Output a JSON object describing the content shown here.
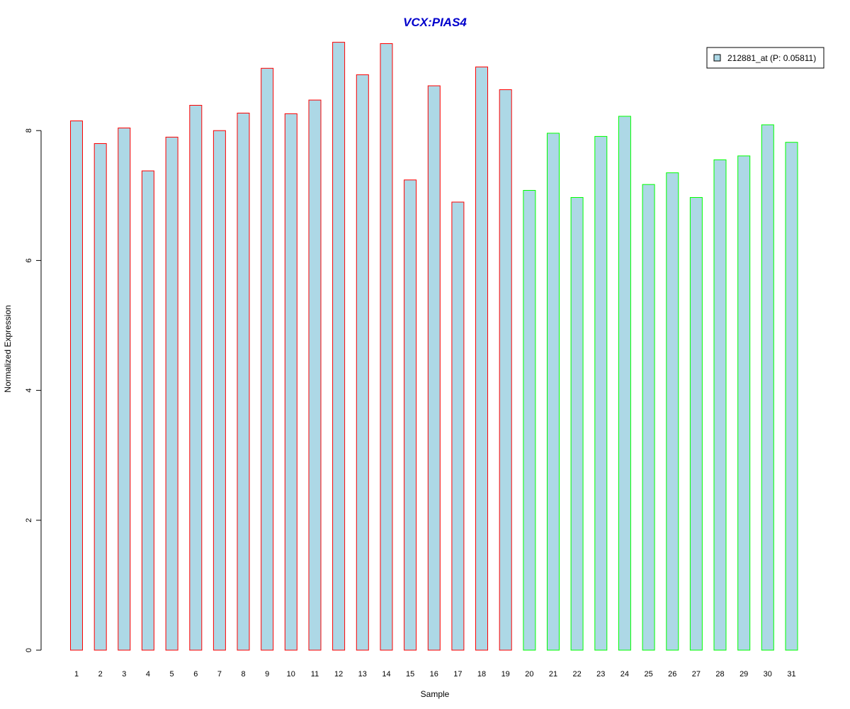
{
  "chart_data": {
    "type": "bar",
    "title": "VCX:PIAS4",
    "xlabel": "Sample",
    "ylabel": "Normalized Expression",
    "categories": [
      "1",
      "2",
      "3",
      "4",
      "5",
      "6",
      "7",
      "8",
      "9",
      "10",
      "11",
      "12",
      "13",
      "14",
      "15",
      "16",
      "17",
      "18",
      "19",
      "20",
      "21",
      "22",
      "23",
      "24",
      "25",
      "26",
      "27",
      "28",
      "29",
      "30",
      "31"
    ],
    "series": [
      {
        "name": "212881_at (P: 0.05811)",
        "values": [
          8.15,
          7.8,
          8.04,
          7.38,
          7.9,
          8.39,
          8.0,
          8.27,
          8.96,
          8.26,
          8.47,
          9.36,
          8.86,
          9.34,
          7.24,
          8.69,
          6.9,
          8.98,
          8.63,
          7.08,
          7.96,
          6.97,
          7.91,
          8.22,
          7.17,
          7.35,
          6.97,
          7.55,
          7.61,
          8.09,
          7.82
        ]
      }
    ],
    "groups": [
      {
        "start": 1,
        "end": 19,
        "border_color": "#ff0000"
      },
      {
        "start": 20,
        "end": 31,
        "border_color": "#00ff00"
      }
    ],
    "yticks": [
      "0",
      "2",
      "4",
      "6",
      "8"
    ],
    "ylim": [
      0,
      9.36
    ],
    "bar_fill": "#add8e6",
    "title_color": "#0000cc",
    "legend": {
      "label": "212881_at (P: 0.05811)",
      "position": "top-right"
    },
    "grid": false
  }
}
